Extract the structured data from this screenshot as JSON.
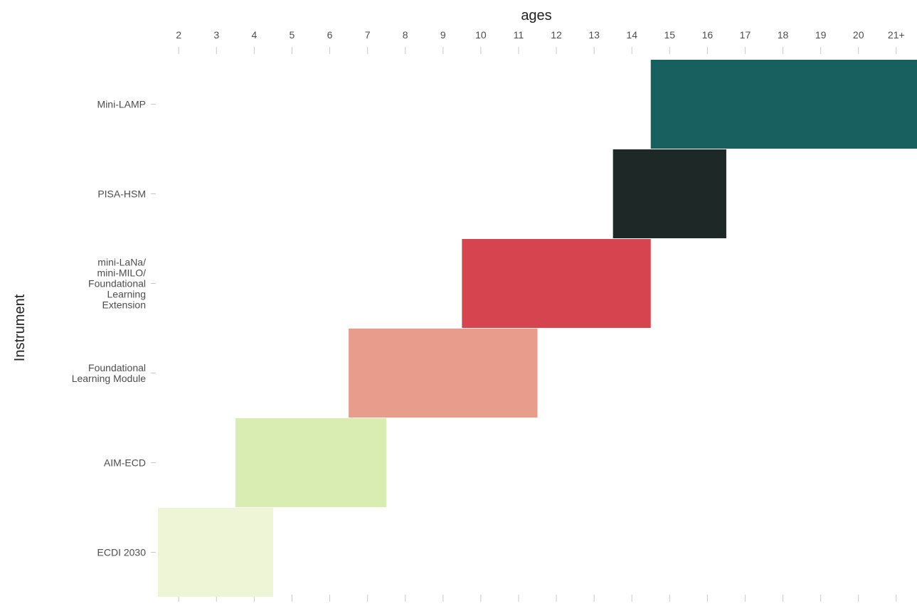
{
  "chart_data": {
    "type": "bar",
    "orientation": "horizontal-range",
    "title": "",
    "xlabel": "ages",
    "ylabel": "Instrument",
    "x_axis_position": "top",
    "x_ticks": [
      "2",
      "3",
      "4",
      "5",
      "6",
      "7",
      "8",
      "9",
      "10",
      "11",
      "12",
      "13",
      "14",
      "15",
      "16",
      "17",
      "18",
      "19",
      "20",
      "21+"
    ],
    "xlim": [
      1.45,
      21.55
    ],
    "grid": false,
    "legend": "none",
    "series": [
      {
        "label": [
          "Mini-LAMP"
        ],
        "start": 14.5,
        "end": 21.55,
        "color": "#17605f"
      },
      {
        "label": [
          "PISA-HSM"
        ],
        "start": 13.5,
        "end": 16.5,
        "color": "#1e2827"
      },
      {
        "label": [
          "mini-LaNa/",
          "mini-MILO/",
          "Foundational",
          "Learning",
          "Extension"
        ],
        "start": 9.5,
        "end": 14.5,
        "color": "#d5444f"
      },
      {
        "label": [
          "Foundational",
          "Learning Module"
        ],
        "start": 6.5,
        "end": 11.5,
        "color": "#e89c8b"
      },
      {
        "label": [
          "AIM-ECD"
        ],
        "start": 3.5,
        "end": 7.5,
        "color": "#d9edb3"
      },
      {
        "label": [
          "ECDI 2030"
        ],
        "start": 1.45,
        "end": 4.5,
        "color": "#eef4d6"
      }
    ]
  }
}
